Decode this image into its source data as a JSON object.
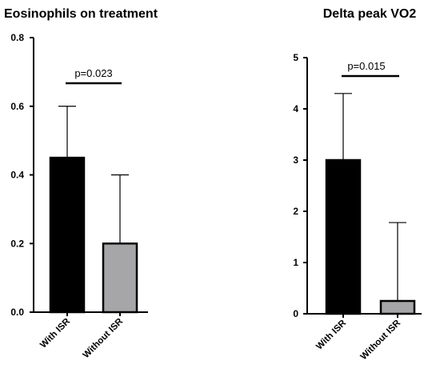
{
  "chart_data": [
    {
      "type": "bar",
      "title": "Eosinophils on treatment",
      "xlabel": "",
      "ylabel": "",
      "categories": [
        "With ISR",
        "Without ISR"
      ],
      "values": [
        0.45,
        0.2
      ],
      "error_upper": [
        0.6,
        0.4
      ],
      "bar_colors": [
        "#000000",
        "#a6a6a8"
      ],
      "ylim": [
        0,
        0.8
      ],
      "yticks": [
        "0.0",
        "0.2",
        "0.4",
        "0.6",
        "0.8"
      ],
      "annotation": "p=0.023",
      "grid": false
    },
    {
      "type": "bar",
      "title": "Delta peak VO2",
      "xlabel": "",
      "ylabel": "",
      "categories": [
        "With ISR",
        "Without ISR"
      ],
      "values": [
        3.0,
        0.25
      ],
      "error_upper": [
        4.3,
        1.78
      ],
      "bar_colors": [
        "#000000",
        "#a6a6a8"
      ],
      "ylim": [
        0,
        5
      ],
      "yticks": [
        "0",
        "1",
        "2",
        "3",
        "4",
        "5"
      ],
      "annotation": "p=0.015",
      "grid": false
    }
  ]
}
